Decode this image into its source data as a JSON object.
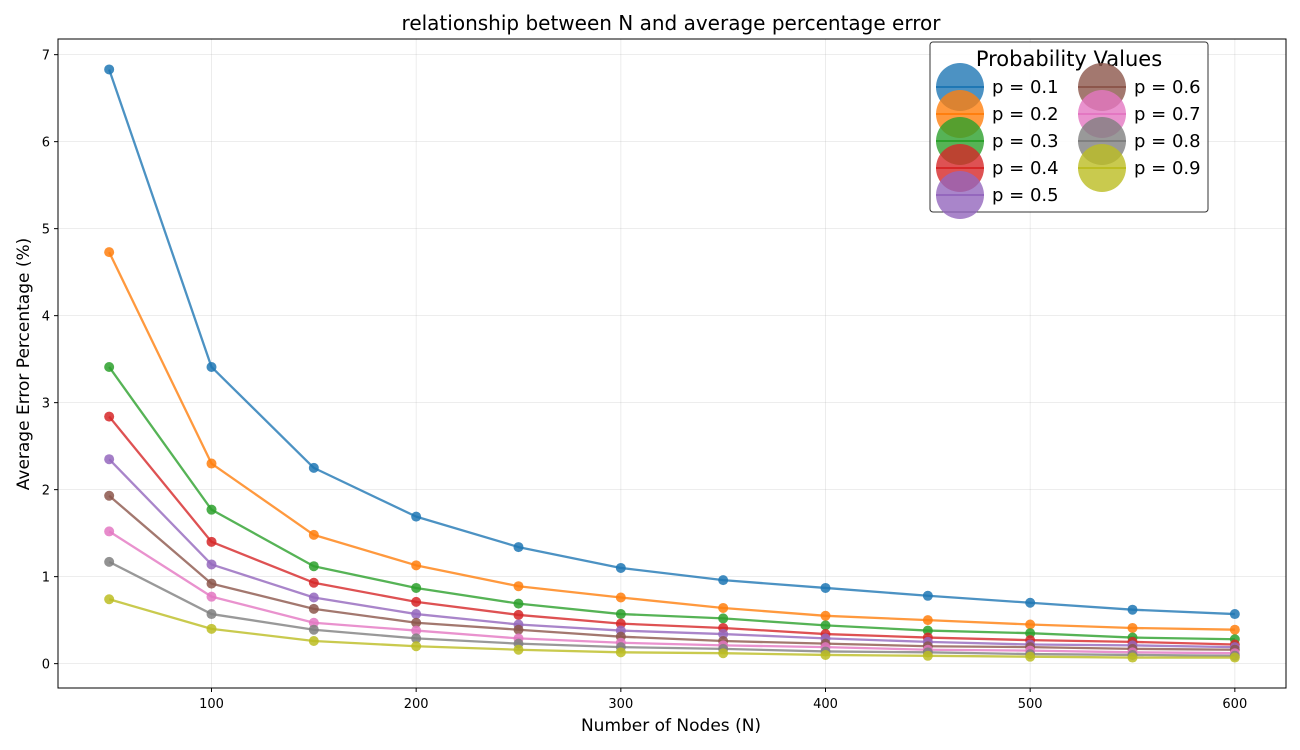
{
  "chart_data": {
    "type": "line",
    "title": "relationship between N and average percentage error",
    "xlabel": "Number of Nodes (N)",
    "ylabel": "Average Error Percentage (%)",
    "xlim": [
      25,
      625
    ],
    "ylim": [
      -0.28,
      7.18
    ],
    "xticks": [
      100,
      200,
      300,
      400,
      500,
      600
    ],
    "yticks": [
      0,
      1,
      2,
      3,
      4,
      5,
      6,
      7
    ],
    "grid": true,
    "x": [
      50,
      100,
      150,
      200,
      250,
      300,
      350,
      400,
      450,
      500,
      550,
      600
    ],
    "legend": {
      "title": "Probability Values",
      "location": "top-right",
      "columns": 2
    },
    "series": [
      {
        "name": "p = 0.1",
        "color": "#1f77b4",
        "values": [
          6.83,
          3.41,
          2.25,
          1.69,
          1.34,
          1.1,
          0.96,
          0.87,
          0.78,
          0.7,
          0.62,
          0.57
        ]
      },
      {
        "name": "p = 0.2",
        "color": "#ff7f0e",
        "values": [
          4.73,
          2.3,
          1.48,
          1.13,
          0.89,
          0.76,
          0.64,
          0.55,
          0.5,
          0.45,
          0.41,
          0.39
        ]
      },
      {
        "name": "p = 0.3",
        "color": "#2ca02c",
        "values": [
          3.41,
          1.77,
          1.12,
          0.87,
          0.69,
          0.57,
          0.52,
          0.44,
          0.38,
          0.35,
          0.3,
          0.28
        ]
      },
      {
        "name": "p = 0.4",
        "color": "#d62728",
        "values": [
          2.84,
          1.4,
          0.93,
          0.71,
          0.56,
          0.46,
          0.41,
          0.34,
          0.3,
          0.27,
          0.25,
          0.22
        ]
      },
      {
        "name": "p = 0.5",
        "color": "#9467bd",
        "values": [
          2.35,
          1.14,
          0.76,
          0.57,
          0.45,
          0.38,
          0.34,
          0.29,
          0.25,
          0.22,
          0.21,
          0.19
        ]
      },
      {
        "name": "p = 0.6",
        "color": "#8c564b",
        "values": [
          1.93,
          0.92,
          0.63,
          0.47,
          0.39,
          0.31,
          0.26,
          0.23,
          0.2,
          0.19,
          0.17,
          0.16
        ]
      },
      {
        "name": "p = 0.7",
        "color": "#e377c2",
        "values": [
          1.52,
          0.77,
          0.47,
          0.38,
          0.29,
          0.24,
          0.21,
          0.19,
          0.16,
          0.15,
          0.13,
          0.12
        ]
      },
      {
        "name": "p = 0.8",
        "color": "#7f7f7f",
        "values": [
          1.17,
          0.57,
          0.39,
          0.29,
          0.23,
          0.19,
          0.17,
          0.14,
          0.13,
          0.11,
          0.1,
          0.09
        ]
      },
      {
        "name": "p = 0.9",
        "color": "#bcbd22",
        "values": [
          0.74,
          0.4,
          0.26,
          0.2,
          0.16,
          0.13,
          0.12,
          0.1,
          0.09,
          0.08,
          0.07,
          0.07
        ]
      }
    ]
  }
}
